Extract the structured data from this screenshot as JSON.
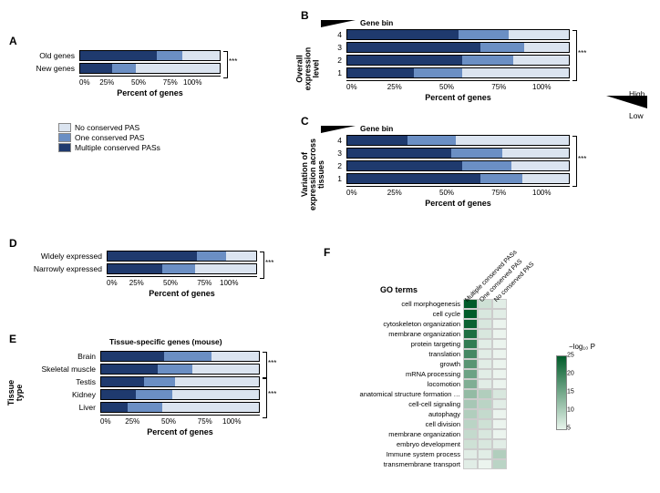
{
  "colors": {
    "multiple": "#1f3a6e",
    "one": "#6b8fc4",
    "none": "#dbe4f0",
    "heatmap_max": "#015c2a",
    "heatmap_min": "#f5faf6"
  },
  "legend": {
    "items": [
      {
        "label": "No conserved PAS",
        "color": "#dbe4f0"
      },
      {
        "label": "One conserved PAS",
        "color": "#6b8fc4"
      },
      {
        "label": "Multiple conserved PASs",
        "color": "#1f3a6e"
      }
    ]
  },
  "axis_ticks": [
    "0%",
    "25%",
    "50%",
    "75%",
    "100%"
  ],
  "xlabel": "Percent of genes",
  "panelA": {
    "label": "A",
    "categories": [
      "Old genes",
      "New genes"
    ],
    "data": [
      {
        "multiple": 55,
        "one": 18,
        "none": 27
      },
      {
        "multiple": 23,
        "one": 17,
        "none": 60
      }
    ],
    "sig": "***"
  },
  "panelB": {
    "label": "B",
    "title": "Gene bin",
    "ylabel": "Overall\nexpression\nlevel",
    "categories": [
      "4",
      "3",
      "2",
      "1"
    ],
    "data": [
      {
        "multiple": 50,
        "one": 23,
        "none": 27
      },
      {
        "multiple": 60,
        "one": 20,
        "none": 20
      },
      {
        "multiple": 52,
        "one": 23,
        "none": 25
      },
      {
        "multiple": 30,
        "one": 22,
        "none": 48
      }
    ],
    "sig": "***"
  },
  "panelC": {
    "label": "C",
    "title": "Gene bin",
    "ylabel": "Variation of\nexpression across\ntissues",
    "categories": [
      "4",
      "3",
      "2",
      "1"
    ],
    "data": [
      {
        "multiple": 27,
        "one": 22,
        "none": 51
      },
      {
        "multiple": 47,
        "one": 23,
        "none": 30
      },
      {
        "multiple": 52,
        "one": 22,
        "none": 26
      },
      {
        "multiple": 60,
        "one": 19,
        "none": 21
      }
    ],
    "sig": "***"
  },
  "triangle_legend": {
    "high": "High",
    "low": "Low"
  },
  "panelD": {
    "label": "D",
    "categories": [
      "Widely expressed",
      "Narrowly expressed"
    ],
    "data": [
      {
        "multiple": 60,
        "one": 20,
        "none": 20
      },
      {
        "multiple": 37,
        "one": 22,
        "none": 41
      }
    ],
    "sig": "***"
  },
  "panelE": {
    "label": "E",
    "title": "Tissue-specific genes (mouse)",
    "ylabel": "Tissue\ntype",
    "categories": [
      "Brain",
      "Skeletal muscle",
      "Testis",
      "Kidney",
      "Liver"
    ],
    "data": [
      {
        "multiple": 40,
        "one": 30,
        "none": 30
      },
      {
        "multiple": 36,
        "one": 22,
        "none": 42
      },
      {
        "multiple": 27,
        "one": 20,
        "none": 53
      },
      {
        "multiple": 22,
        "one": 23,
        "none": 55
      },
      {
        "multiple": 17,
        "one": 22,
        "none": 61
      }
    ],
    "sig": "***"
  },
  "panelF": {
    "label": "F",
    "title": "GO terms",
    "columns": [
      "Multiple conserved PASs",
      "One conserved PAS",
      "No conserved PAS"
    ],
    "rows": [
      {
        "term": "cell morphogenesis",
        "vals": [
          28,
          4,
          2
        ]
      },
      {
        "term": "cell cycle",
        "vals": [
          26,
          3,
          2
        ]
      },
      {
        "term": "cytoskeleton organization",
        "vals": [
          24,
          3,
          1
        ]
      },
      {
        "term": "membrane organization",
        "vals": [
          22,
          3,
          1
        ]
      },
      {
        "term": "protein targeting",
        "vals": [
          20,
          2,
          1
        ]
      },
      {
        "term": "translation",
        "vals": [
          18,
          2,
          1
        ]
      },
      {
        "term": "growth",
        "vals": [
          16,
          2,
          1
        ]
      },
      {
        "term": "mRNA processing",
        "vals": [
          14,
          2,
          1
        ]
      },
      {
        "term": "locomotion",
        "vals": [
          12,
          2,
          1
        ]
      },
      {
        "term": "anatomical structure formation …",
        "vals": [
          10,
          7,
          3
        ]
      },
      {
        "term": "cell-cell signaling",
        "vals": [
          8,
          6,
          2
        ]
      },
      {
        "term": "autophagy",
        "vals": [
          7,
          5,
          1
        ]
      },
      {
        "term": "cell division",
        "vals": [
          6,
          4,
          1
        ]
      },
      {
        "term": "membrane organization",
        "vals": [
          5,
          3,
          1
        ]
      },
      {
        "term": "embryo development",
        "vals": [
          4,
          3,
          2
        ]
      },
      {
        "term": "Immune system process",
        "vals": [
          2,
          2,
          7
        ]
      },
      {
        "term": "transmembrane transport",
        "vals": [
          2,
          1,
          6
        ]
      }
    ],
    "cbar": {
      "label": "−log₁₀ P",
      "max": 25,
      "ticks": [
        25,
        20,
        15,
        10,
        5
      ]
    }
  }
}
